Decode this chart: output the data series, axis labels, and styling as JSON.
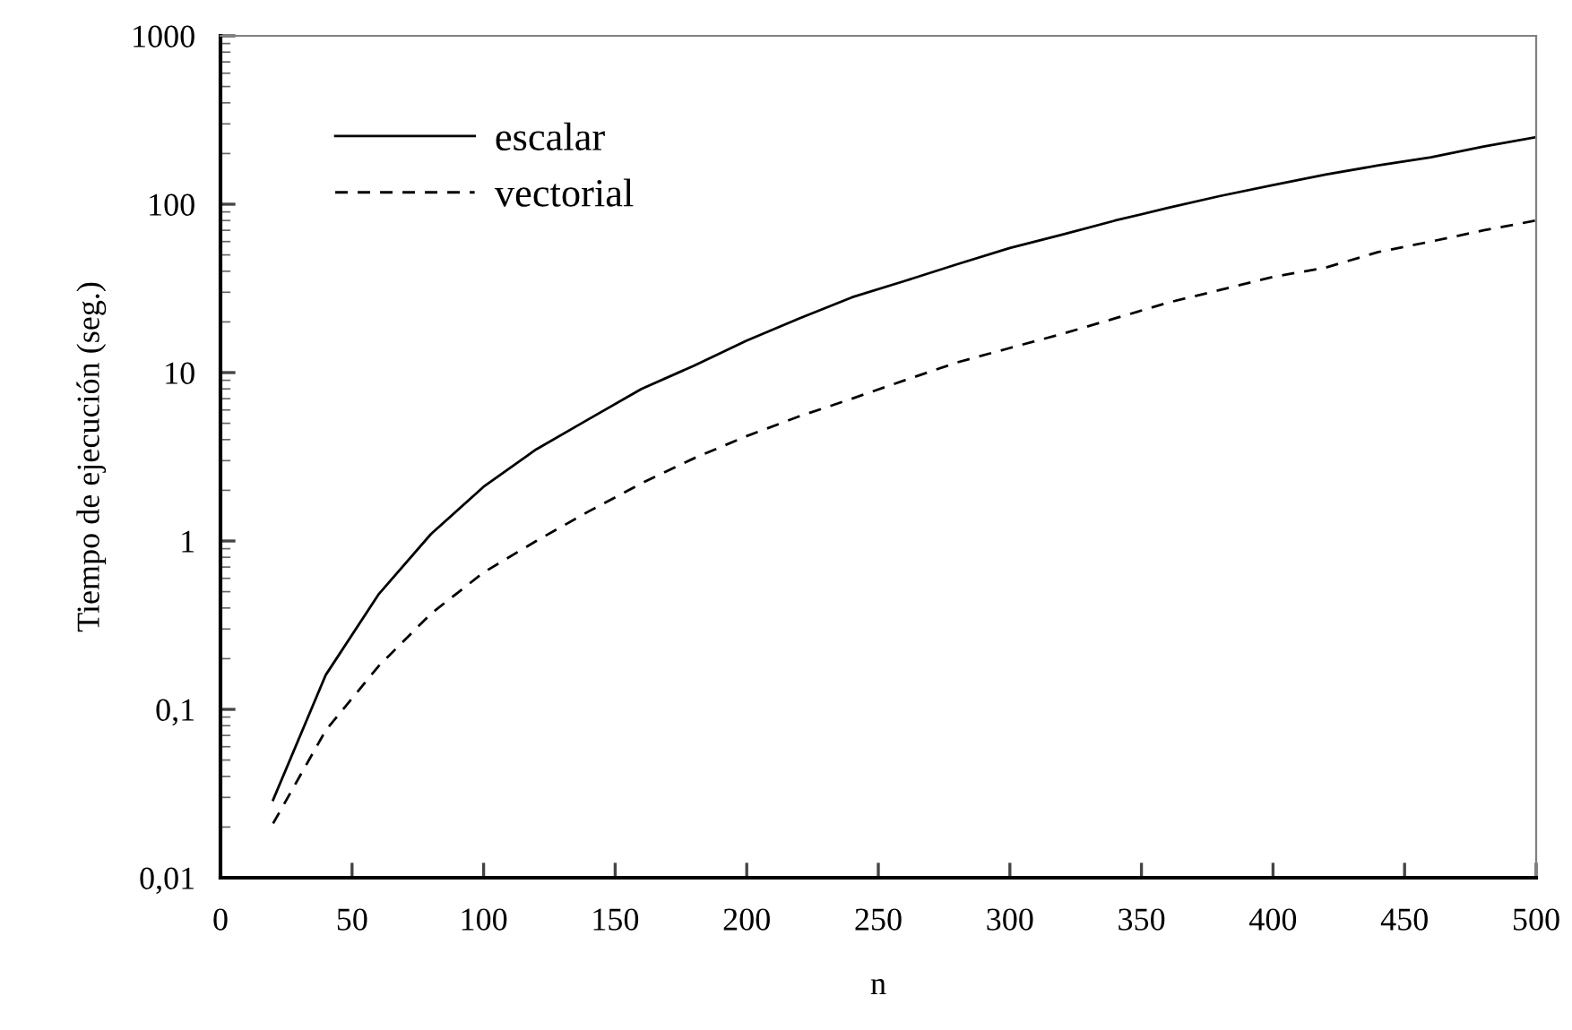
{
  "chart_data": {
    "type": "line",
    "xlabel": "n",
    "ylabel": "Tiempo de ejecución (seg.)",
    "x": [
      20,
      40,
      60,
      80,
      100,
      120,
      140,
      160,
      180,
      200,
      220,
      240,
      260,
      280,
      300,
      320,
      340,
      360,
      380,
      400,
      420,
      440,
      460,
      480,
      500
    ],
    "series": [
      {
        "name": "escalar",
        "color": "#000000",
        "line_style": "solid",
        "values": [
          0.029,
          0.16,
          0.48,
          1.1,
          2.1,
          3.5,
          5.3,
          8,
          11,
          15.5,
          21,
          28,
          35,
          44,
          55,
          66,
          80,
          95,
          112,
          130,
          150,
          170,
          190,
          220,
          250
        ]
      },
      {
        "name": "vectorial",
        "color": "#000000",
        "line_style": "dashed",
        "values": [
          0.021,
          0.075,
          0.18,
          0.37,
          0.65,
          1.0,
          1.5,
          2.2,
          3.1,
          4.2,
          5.5,
          7,
          9,
          11.5,
          14,
          17,
          21,
          26,
          31,
          37,
          42,
          52,
          60,
          70,
          80
        ]
      }
    ],
    "log": "y",
    "xlim": [
      0,
      500
    ],
    "xticks": [
      0,
      50,
      100,
      150,
      200,
      250,
      300,
      350,
      400,
      450,
      500
    ],
    "ylim": [
      0.01,
      1000
    ],
    "yticks": [
      {
        "value": 0.01,
        "label": "0,01"
      },
      {
        "value": 0.1,
        "label": "0,1"
      },
      1,
      10,
      100,
      1000
    ],
    "grid": false,
    "legend": "top left",
    "marker": "none"
  }
}
